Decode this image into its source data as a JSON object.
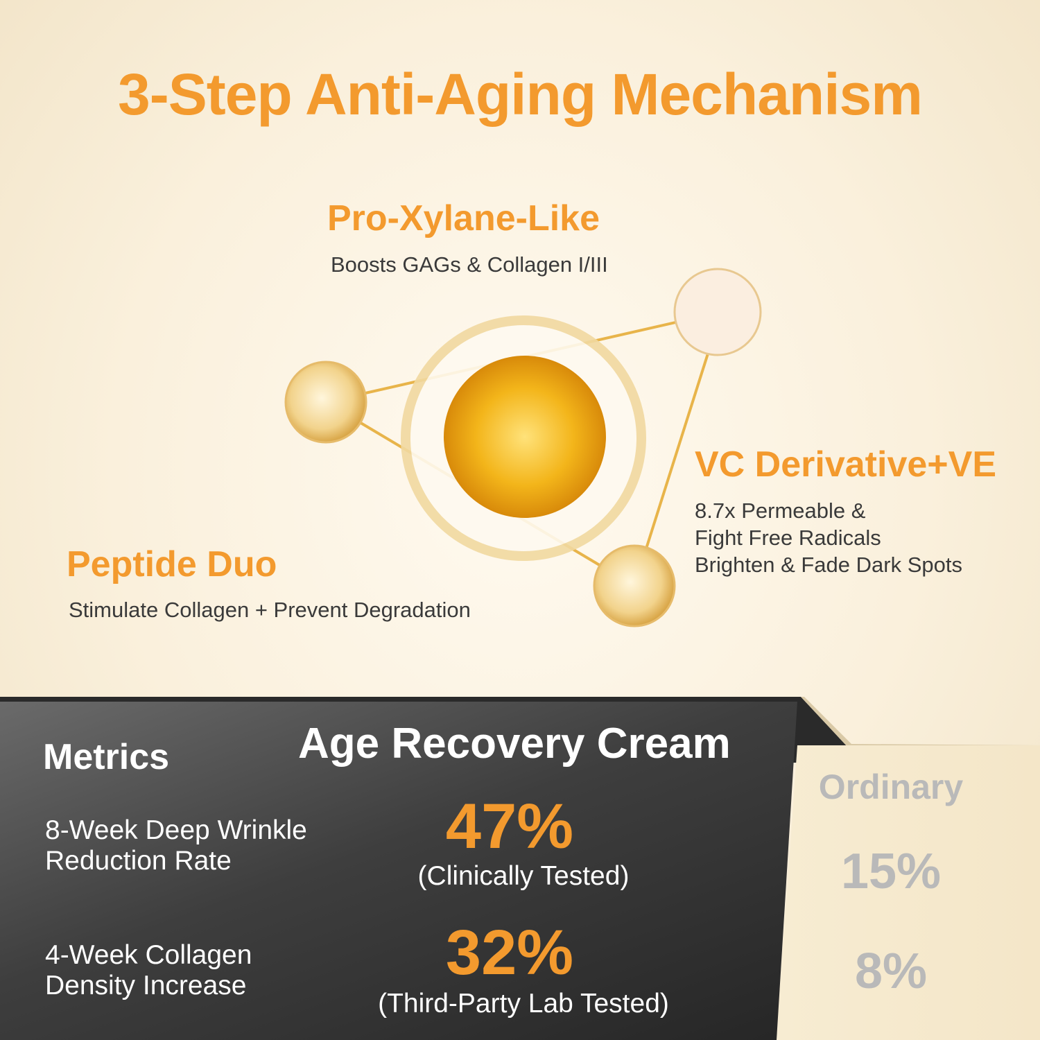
{
  "title": "3-Step Anti-Aging Mechanism",
  "ingredients": [
    {
      "name": "Pro-Xylane-Like",
      "description": [
        "Boosts GAGs & Collagen I/III"
      ]
    },
    {
      "name": "VC Derivative+VE",
      "description": [
        "8.7x Permeable &",
        "Fight Free Radicals",
        "Brighten & Fade Dark Spots"
      ]
    },
    {
      "name": "Peptide Duo",
      "description": [
        "Stimulate Collagen + Prevent Degradation"
      ]
    }
  ],
  "comparison": {
    "metrics_header": "Metrics",
    "product_header": "Age Recovery Cream",
    "ordinary_header": "Ordinary",
    "rows": [
      {
        "metric": [
          "8-Week Deep Wrinkle",
          "Reduction Rate"
        ],
        "product_value": "47%",
        "product_note": "(Clinically Tested)",
        "ordinary_value": "15%"
      },
      {
        "metric": [
          "4-Week Collagen",
          "Density Increase"
        ],
        "product_value": "32%",
        "product_note": "(Third-Party Lab Tested)",
        "ordinary_value": "8%"
      }
    ]
  },
  "colors": {
    "accent": "#f39a2e",
    "dark_panel": "#3a3a3a",
    "ordinary_text": "#b9b9b9"
  }
}
